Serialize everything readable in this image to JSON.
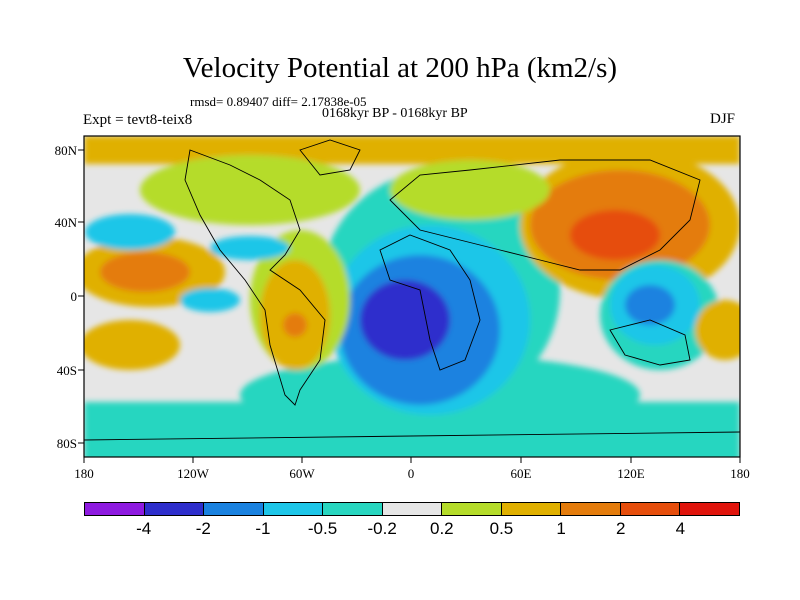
{
  "title": "Velocity Potential at 200 hPa (km2/s)",
  "stats": "rmsd= 0.89407 diff= 2.17838e-05",
  "left_label": "Expt = tevt8-teix8",
  "center_label": "0168kyr BP - 0168kyr BP",
  "right_label": "DJF",
  "lat_labels": [
    "80N",
    "40N",
    "0",
    "40S",
    "80S"
  ],
  "lon_labels": [
    "180",
    "120W",
    "60W",
    "0",
    "60E",
    "120E",
    "180"
  ],
  "colorbar": {
    "colors": [
      "#8e1ae0",
      "#2e2ecc",
      "#1a82e0",
      "#1ec6e8",
      "#28d6c0",
      "#e6e6e6",
      "#b5dc2a",
      "#e0b000",
      "#e47c0c",
      "#e64e0c",
      "#e0140c"
    ],
    "labels": [
      "-4",
      "-2",
      "-1",
      "-0.5",
      "-0.2",
      "0.2",
      "0.5",
      "1",
      "2",
      "4"
    ]
  },
  "map_colors": {
    "ocean_zero": "#e6e6e6",
    "neg_weak": "#28d6c0",
    "neg_mid": "#1ec6e8",
    "neg_strong": "#1a82e0",
    "neg_max": "#2e2ecc",
    "pos_weak": "#b5dc2a",
    "pos_mid": "#e0b000",
    "pos_strong": "#e47c0c",
    "pos_max": "#e64e0c"
  }
}
